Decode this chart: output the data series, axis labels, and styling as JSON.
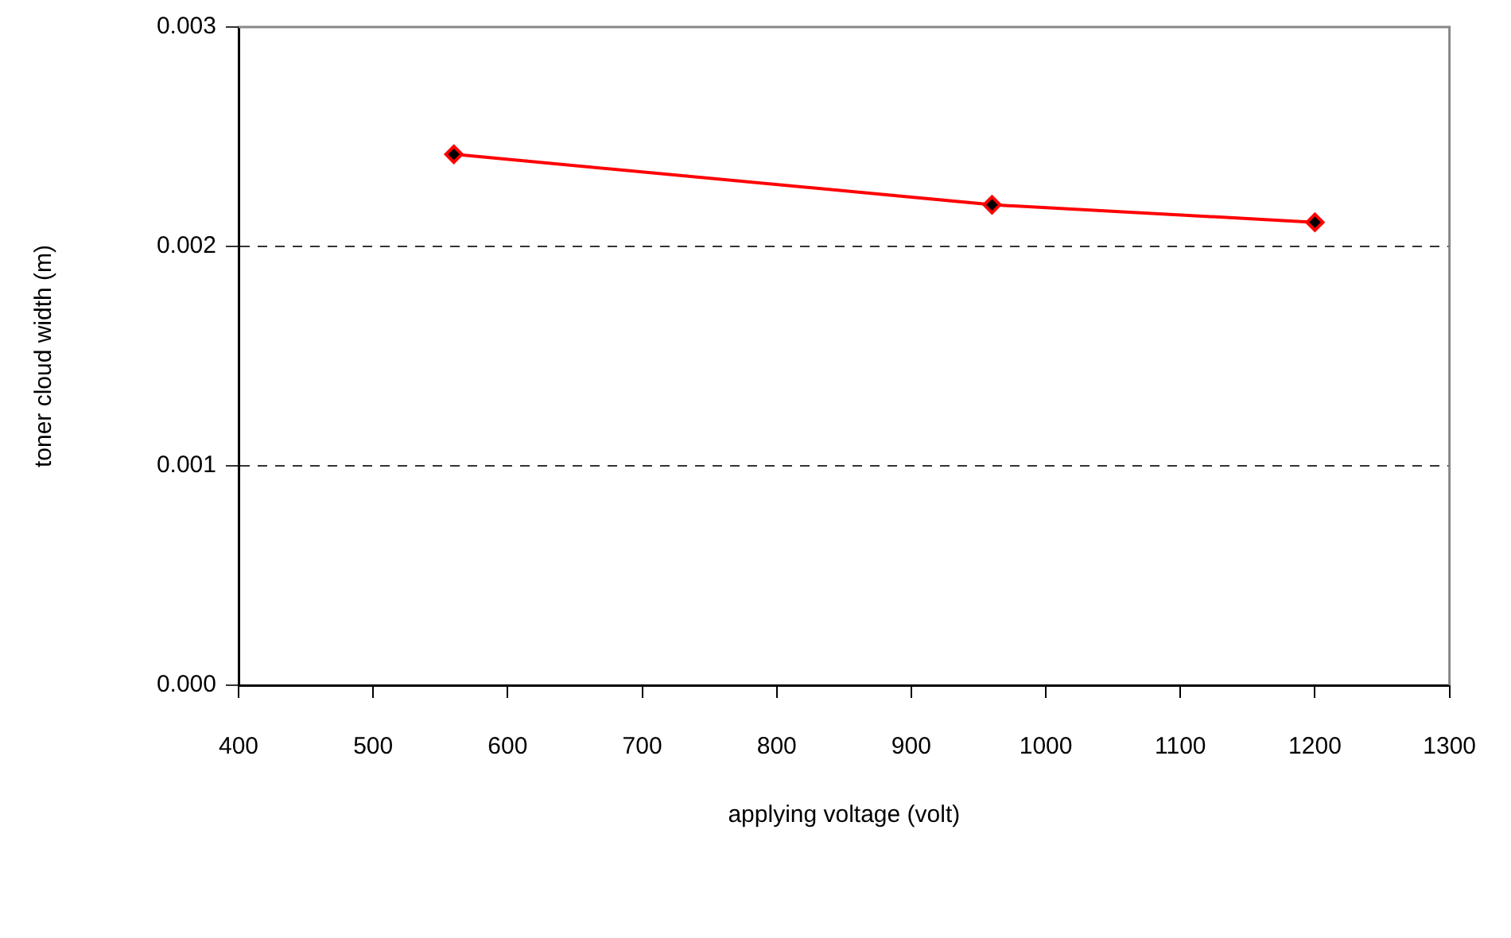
{
  "chart_data": {
    "type": "line",
    "xlabel": "applying voltage (volt)",
    "ylabel": "toner cloud width (m)",
    "x": [
      560,
      960,
      1200
    ],
    "series": [
      {
        "color": "#ff0000",
        "values": [
          0.00242,
          0.00219,
          0.00211
        ]
      }
    ],
    "xlim": [
      400,
      1300
    ],
    "xticks": [
      400,
      500,
      600,
      700,
      800,
      900,
      1000,
      1100,
      1200,
      1300
    ],
    "ylim": [
      0,
      0.003
    ],
    "yticks": [
      {
        "value": 0,
        "label": "0.000"
      },
      {
        "value": 0.001,
        "label": "0.001"
      },
      {
        "value": 0.002,
        "label": "0.002"
      },
      {
        "value": 0.003,
        "label": "0.003"
      }
    ],
    "grid": "y",
    "legend": false,
    "marker": "diamond",
    "line_style": "solid"
  }
}
